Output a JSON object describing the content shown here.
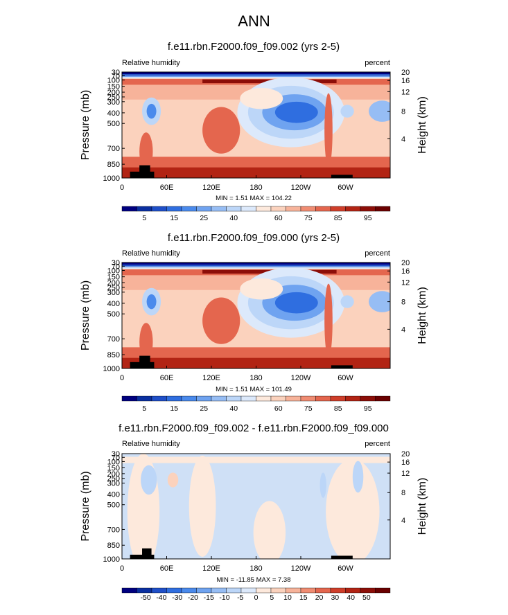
{
  "figure": {
    "title": "ANN"
  },
  "chart_data": [
    {
      "type": "heatmap",
      "title": "f.e11.rbn.F2000.f09_f09.002 (yrs 2-5)",
      "left_label": "Relative humidity",
      "right_label": "percent",
      "ylabel": "Pressure (mb)",
      "ylabel_right": "Height (km)",
      "x_ticks": [
        "0",
        "60E",
        "120E",
        "180",
        "120W",
        "60W"
      ],
      "y_ticks": [
        "30",
        "70",
        "100",
        "150",
        "200",
        "250",
        "300",
        "400",
        "500",
        "700",
        "850",
        "1000"
      ],
      "y_ticks_right": [
        "20",
        "16",
        "12",
        "8",
        "4"
      ],
      "stats": "MIN =   1.51  MAX = 104.22",
      "colorbar_labels": [
        "5",
        "15",
        "25",
        "40",
        "60",
        "75",
        "85",
        "95"
      ]
    },
    {
      "type": "heatmap",
      "title": "f.e11.rbn.F2000.f09_f09.000 (yrs 2-5)",
      "left_label": "Relative humidity",
      "right_label": "percent",
      "ylabel": "Pressure (mb)",
      "ylabel_right": "Height (km)",
      "x_ticks": [
        "0",
        "60E",
        "120E",
        "180",
        "120W",
        "60W"
      ],
      "y_ticks": [
        "30",
        "70",
        "100",
        "150",
        "200",
        "250",
        "300",
        "400",
        "500",
        "700",
        "850",
        "1000"
      ],
      "y_ticks_right": [
        "20",
        "16",
        "12",
        "8",
        "4"
      ],
      "stats": "MIN =   1.51  MAX = 101.49",
      "colorbar_labels": [
        "5",
        "15",
        "25",
        "40",
        "60",
        "75",
        "85",
        "95"
      ]
    },
    {
      "type": "heatmap",
      "title": "f.e11.rbn.F2000.f09_f09.002 - f.e11.rbn.F2000.f09_f09.000",
      "left_label": "Relative humidity",
      "right_label": "percent",
      "ylabel": "Pressure (mb)",
      "ylabel_right": "Height (km)",
      "x_ticks": [
        "0",
        "60E",
        "120E",
        "180",
        "120W",
        "60W"
      ],
      "y_ticks": [
        "30",
        "70",
        "100",
        "150",
        "200",
        "250",
        "300",
        "400",
        "500",
        "700",
        "850",
        "1000"
      ],
      "y_ticks_right": [
        "20",
        "16",
        "12",
        "8",
        "4"
      ],
      "stats": "MIN = -11.85  MAX =   7.38",
      "colorbar_labels": [
        "-50",
        "-40",
        "-30",
        "-20",
        "-15",
        "-10",
        "-5",
        "0",
        "5",
        "10",
        "15",
        "20",
        "30",
        "40",
        "50"
      ]
    }
  ],
  "colors": {
    "palette": [
      "#00007f",
      "#0a2fa0",
      "#1f4fc8",
      "#2f6ee0",
      "#4a8aec",
      "#6fa3f0",
      "#96bdf4",
      "#bcd6f8",
      "#dce9fb",
      "#fde9dc",
      "#fbd2bd",
      "#f7b39a",
      "#f08c72",
      "#e4664e",
      "#cf3e2a",
      "#b22414",
      "#8c0e08",
      "#6a0000"
    ],
    "terrain": "#000000"
  }
}
